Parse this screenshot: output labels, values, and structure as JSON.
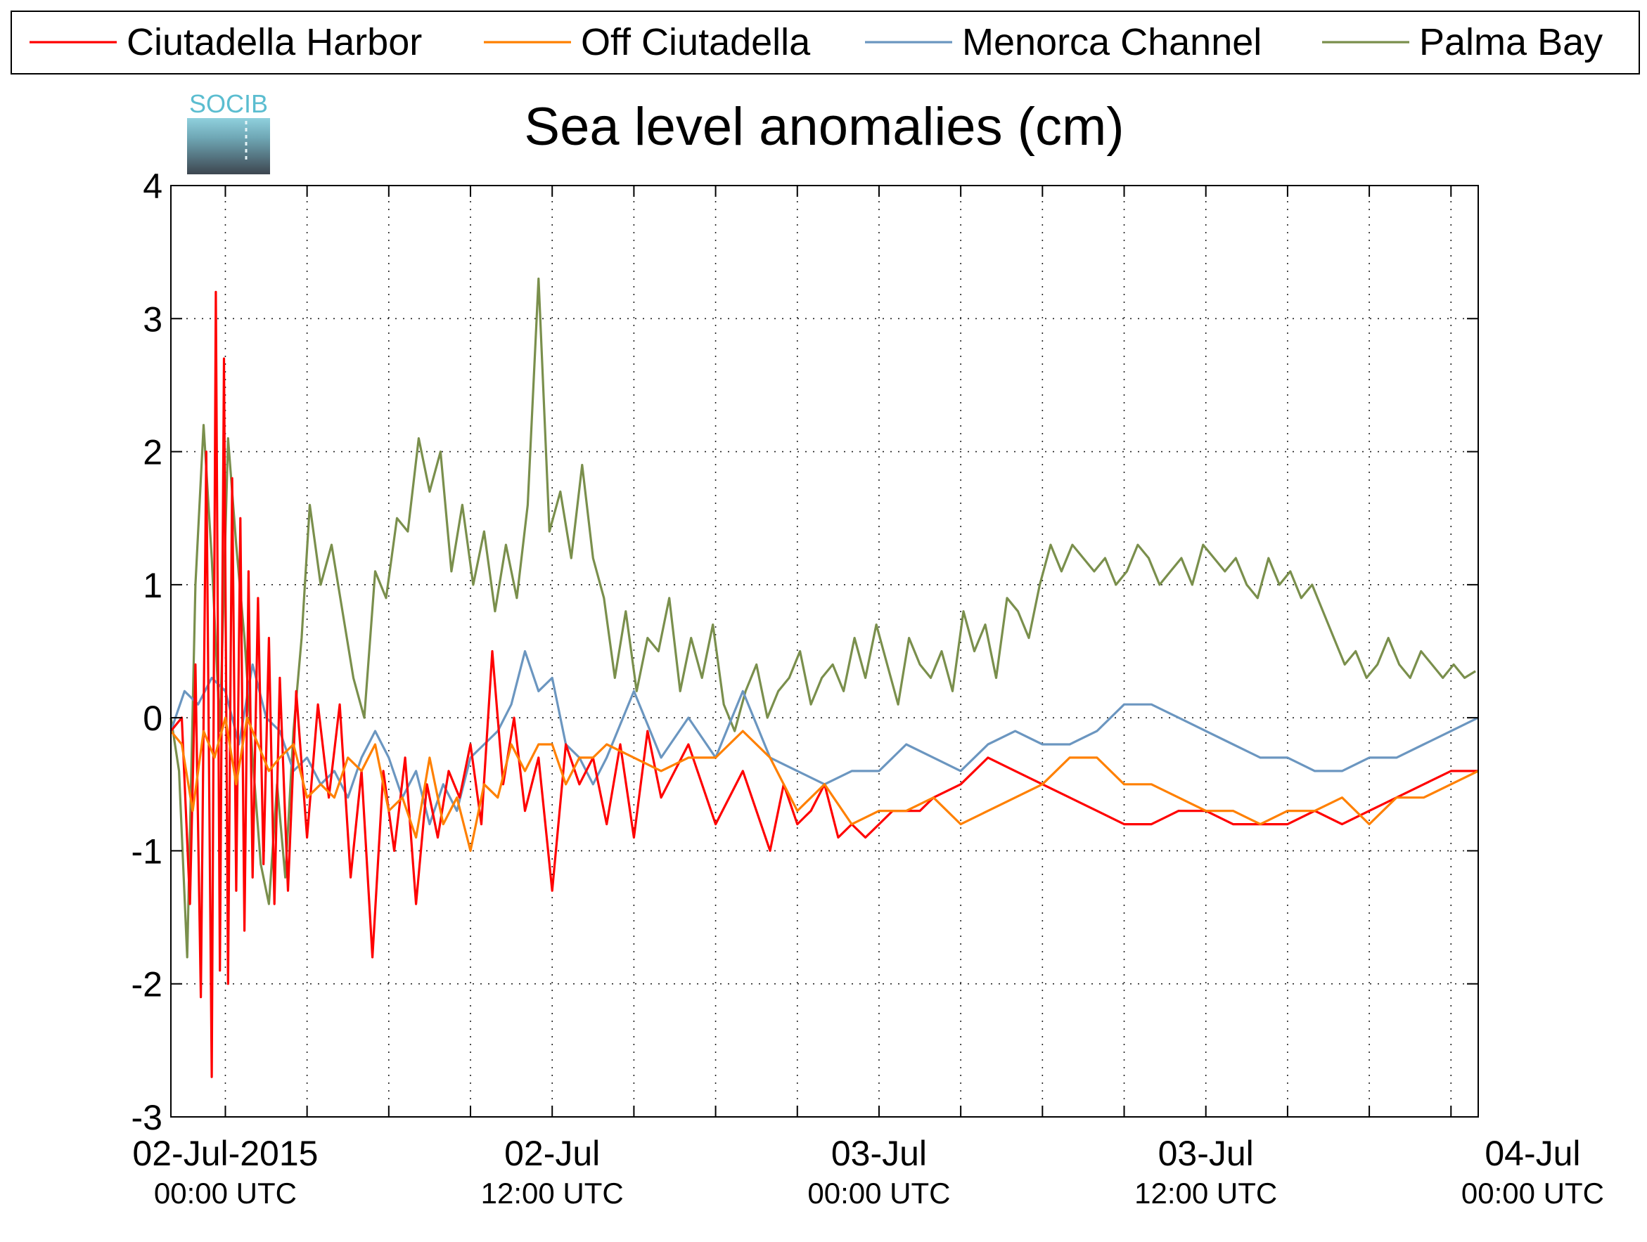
{
  "chart_data": {
    "type": "line",
    "title": "Sea level anomalies (cm)",
    "xlabel": "",
    "ylabel": "",
    "ylim": [
      -3,
      4
    ],
    "yticks": [
      -3,
      -2,
      -1,
      0,
      1,
      2,
      3,
      4
    ],
    "xlim_hours": [
      -2,
      46
    ],
    "xticks": [
      {
        "hour": 0,
        "line1": "02-Jul-2015",
        "line2": "00:00 UTC"
      },
      {
        "hour": 12,
        "line1": "02-Jul",
        "line2": "12:00 UTC"
      },
      {
        "hour": 24,
        "line1": "03-Jul",
        "line2": "00:00 UTC"
      },
      {
        "hour": 36,
        "line1": "03-Jul",
        "line2": "12:00 UTC"
      },
      {
        "hour": 48,
        "line1": "04-Jul",
        "line2": "00:00 UTC"
      }
    ],
    "grid": true,
    "legend_position": "top",
    "logo_text": "SOCIB",
    "series": [
      {
        "name": "Ciutadella Harbor",
        "color": "#ff0000",
        "x": [
          -2.0,
          -1.6,
          -1.3,
          -1.1,
          -0.9,
          -0.7,
          -0.5,
          -0.35,
          -0.2,
          -0.05,
          0.1,
          0.25,
          0.4,
          0.55,
          0.7,
          0.85,
          1.0,
          1.2,
          1.4,
          1.6,
          1.8,
          2.0,
          2.3,
          2.6,
          3.0,
          3.4,
          3.8,
          4.2,
          4.6,
          5.0,
          5.4,
          5.8,
          6.2,
          6.6,
          7.0,
          7.4,
          7.8,
          8.2,
          8.6,
          9.0,
          9.4,
          9.8,
          10.2,
          10.6,
          11.0,
          11.5,
          12.0,
          12.5,
          13.0,
          13.5,
          14.0,
          14.5,
          15.0,
          15.5,
          16.0,
          17.0,
          18.0,
          19.0,
          20.0,
          20.5,
          21.0,
          21.5,
          22.0,
          22.5,
          23.0,
          23.5,
          24.0,
          24.5,
          25.0,
          25.5,
          26.0,
          27.0,
          28.0,
          29.0,
          30.0,
          31.0,
          32.0,
          33.0,
          34.0,
          35.0,
          36.0,
          37.0,
          38.0,
          39.0,
          40.0,
          41.0,
          42.0,
          43.0,
          44.0,
          45.0,
          46.0
        ],
        "values": [
          -0.1,
          0.0,
          -1.4,
          0.4,
          -2.1,
          2.0,
          -2.7,
          3.2,
          -1.9,
          2.7,
          -2.0,
          1.8,
          -1.3,
          1.5,
          -1.6,
          1.1,
          -1.2,
          0.9,
          -1.1,
          0.6,
          -1.4,
          0.3,
          -1.3,
          0.2,
          -0.9,
          0.1,
          -0.6,
          0.1,
          -1.2,
          -0.4,
          -1.8,
          -0.4,
          -1.0,
          -0.3,
          -1.4,
          -0.5,
          -0.9,
          -0.4,
          -0.6,
          -0.2,
          -0.8,
          0.5,
          -0.5,
          0.0,
          -0.7,
          -0.3,
          -1.3,
          -0.2,
          -0.5,
          -0.3,
          -0.8,
          -0.2,
          -0.9,
          -0.1,
          -0.6,
          -0.2,
          -0.8,
          -0.4,
          -1.0,
          -0.5,
          -0.8,
          -0.7,
          -0.5,
          -0.9,
          -0.8,
          -0.9,
          -0.8,
          -0.7,
          -0.7,
          -0.7,
          -0.6,
          -0.5,
          -0.3,
          -0.4,
          -0.5,
          -0.6,
          -0.7,
          -0.8,
          -0.8,
          -0.7,
          -0.7,
          -0.8,
          -0.8,
          -0.8,
          -0.7,
          -0.8,
          -0.7,
          -0.6,
          -0.5,
          -0.4,
          -0.4
        ]
      },
      {
        "name": "Off Ciutadella",
        "color": "#ff8000",
        "x": [
          -2.0,
          -1.6,
          -1.2,
          -0.8,
          -0.4,
          0.0,
          0.4,
          0.8,
          1.2,
          1.6,
          2.0,
          2.5,
          3.0,
          3.5,
          4.0,
          4.5,
          5.0,
          5.5,
          6.0,
          6.5,
          7.0,
          7.5,
          8.0,
          8.5,
          9.0,
          9.5,
          10.0,
          10.5,
          11.0,
          11.5,
          12.0,
          12.5,
          13.0,
          13.5,
          14.0,
          15.0,
          16.0,
          17.0,
          18.0,
          19.0,
          20.0,
          21.0,
          22.0,
          23.0,
          24.0,
          25.0,
          26.0,
          27.0,
          28.0,
          29.0,
          30.0,
          31.0,
          32.0,
          33.0,
          34.0,
          35.0,
          36.0,
          37.0,
          38.0,
          39.0,
          40.0,
          41.0,
          42.0,
          43.0,
          44.0,
          45.0,
          46.0
        ],
        "values": [
          -0.1,
          -0.2,
          -0.7,
          -0.1,
          -0.3,
          0.0,
          -0.5,
          0.0,
          -0.2,
          -0.4,
          -0.3,
          -0.2,
          -0.6,
          -0.5,
          -0.6,
          -0.3,
          -0.4,
          -0.2,
          -0.7,
          -0.6,
          -0.9,
          -0.3,
          -0.8,
          -0.6,
          -1.0,
          -0.5,
          -0.6,
          -0.2,
          -0.4,
          -0.2,
          -0.2,
          -0.5,
          -0.3,
          -0.3,
          -0.2,
          -0.3,
          -0.4,
          -0.3,
          -0.3,
          -0.1,
          -0.3,
          -0.7,
          -0.5,
          -0.8,
          -0.7,
          -0.7,
          -0.6,
          -0.8,
          -0.7,
          -0.6,
          -0.5,
          -0.3,
          -0.3,
          -0.5,
          -0.5,
          -0.6,
          -0.7,
          -0.7,
          -0.8,
          -0.7,
          -0.7,
          -0.6,
          -0.8,
          -0.6,
          -0.6,
          -0.5,
          -0.4
        ]
      },
      {
        "name": "Menorca Channel",
        "color": "#6b96c0",
        "x": [
          -2.0,
          -1.5,
          -1.0,
          -0.5,
          0.0,
          0.5,
          1.0,
          1.5,
          2.0,
          2.5,
          3.0,
          3.5,
          4.0,
          4.5,
          5.0,
          5.5,
          6.0,
          6.5,
          7.0,
          7.5,
          8.0,
          8.5,
          9.0,
          9.5,
          10.0,
          10.5,
          11.0,
          11.5,
          12.0,
          12.5,
          13.0,
          13.5,
          14.0,
          15.0,
          16.0,
          17.0,
          18.0,
          19.0,
          20.0,
          21.0,
          22.0,
          23.0,
          24.0,
          25.0,
          26.0,
          27.0,
          28.0,
          29.0,
          30.0,
          31.0,
          32.0,
          33.0,
          34.0,
          35.0,
          36.0,
          37.0,
          38.0,
          39.0,
          40.0,
          41.0,
          42.0,
          43.0,
          44.0,
          45.0,
          46.0
        ],
        "values": [
          -0.1,
          0.2,
          0.1,
          0.3,
          0.2,
          -0.2,
          0.4,
          0.0,
          -0.1,
          -0.4,
          -0.3,
          -0.5,
          -0.4,
          -0.6,
          -0.3,
          -0.1,
          -0.3,
          -0.6,
          -0.4,
          -0.8,
          -0.5,
          -0.7,
          -0.3,
          -0.2,
          -0.1,
          0.1,
          0.5,
          0.2,
          0.3,
          -0.2,
          -0.3,
          -0.5,
          -0.3,
          0.2,
          -0.3,
          0.0,
          -0.3,
          0.2,
          -0.3,
          -0.4,
          -0.5,
          -0.4,
          -0.4,
          -0.2,
          -0.3,
          -0.4,
          -0.2,
          -0.1,
          -0.2,
          -0.2,
          -0.1,
          0.1,
          0.1,
          0.0,
          -0.1,
          -0.2,
          -0.3,
          -0.3,
          -0.4,
          -0.4,
          -0.3,
          -0.3,
          -0.2,
          -0.1,
          0.0
        ]
      },
      {
        "name": "Palma Bay",
        "color": "#7a8f4c",
        "x": [
          -2.0,
          -1.7,
          -1.4,
          -1.1,
          -0.8,
          -0.5,
          -0.2,
          0.1,
          0.4,
          0.7,
          1.0,
          1.3,
          1.6,
          1.9,
          2.2,
          2.5,
          2.8,
          3.1,
          3.5,
          3.9,
          4.3,
          4.7,
          5.1,
          5.5,
          5.9,
          6.3,
          6.7,
          7.1,
          7.5,
          7.9,
          8.3,
          8.7,
          9.1,
          9.5,
          9.9,
          10.3,
          10.7,
          11.1,
          11.5,
          11.9,
          12.3,
          12.7,
          13.1,
          13.5,
          13.9,
          14.3,
          14.7,
          15.1,
          15.5,
          15.9,
          16.3,
          16.7,
          17.1,
          17.5,
          17.9,
          18.3,
          18.7,
          19.1,
          19.5,
          19.9,
          20.3,
          20.7,
          21.1,
          21.5,
          21.9,
          22.3,
          22.7,
          23.1,
          23.5,
          23.9,
          24.3,
          24.7,
          25.1,
          25.5,
          25.9,
          26.3,
          26.7,
          27.1,
          27.5,
          27.9,
          28.3,
          28.7,
          29.1,
          29.5,
          29.9,
          30.3,
          30.7,
          31.1,
          31.5,
          31.9,
          32.3,
          32.7,
          33.1,
          33.5,
          33.9,
          34.3,
          34.7,
          35.1,
          35.5,
          35.9,
          36.3,
          36.7,
          37.1,
          37.5,
          37.9,
          38.3,
          38.7,
          39.1,
          39.5,
          39.9,
          40.3,
          40.7,
          41.1,
          41.5,
          41.9,
          42.3,
          42.7,
          43.1,
          43.5,
          43.9,
          44.3,
          44.7,
          45.1,
          45.5,
          45.9
        ],
        "values": [
          0.0,
          -0.4,
          -1.8,
          1.0,
          2.2,
          1.2,
          -0.1,
          2.1,
          1.3,
          0.6,
          -0.3,
          -1.1,
          -1.4,
          -0.5,
          -1.2,
          -0.1,
          0.6,
          1.6,
          1.0,
          1.3,
          0.8,
          0.3,
          0.0,
          1.1,
          0.9,
          1.5,
          1.4,
          2.1,
          1.7,
          2.0,
          1.1,
          1.6,
          1.0,
          1.4,
          0.8,
          1.3,
          0.9,
          1.6,
          3.3,
          1.4,
          1.7,
          1.2,
          1.9,
          1.2,
          0.9,
          0.3,
          0.8,
          0.2,
          0.6,
          0.5,
          0.9,
          0.2,
          0.6,
          0.3,
          0.7,
          0.1,
          -0.1,
          0.2,
          0.4,
          0.0,
          0.2,
          0.3,
          0.5,
          0.1,
          0.3,
          0.4,
          0.2,
          0.6,
          0.3,
          0.7,
          0.4,
          0.1,
          0.6,
          0.4,
          0.3,
          0.5,
          0.2,
          0.8,
          0.5,
          0.7,
          0.3,
          0.9,
          0.8,
          0.6,
          1.0,
          1.3,
          1.1,
          1.3,
          1.2,
          1.1,
          1.2,
          1.0,
          1.1,
          1.3,
          1.2,
          1.0,
          1.1,
          1.2,
          1.0,
          1.3,
          1.2,
          1.1,
          1.2,
          1.0,
          0.9,
          1.2,
          1.0,
          1.1,
          0.9,
          1.0,
          0.8,
          0.6,
          0.4,
          0.5,
          0.3,
          0.4,
          0.6,
          0.4,
          0.3,
          0.5,
          0.4,
          0.3,
          0.4,
          0.3,
          0.35
        ]
      }
    ]
  }
}
